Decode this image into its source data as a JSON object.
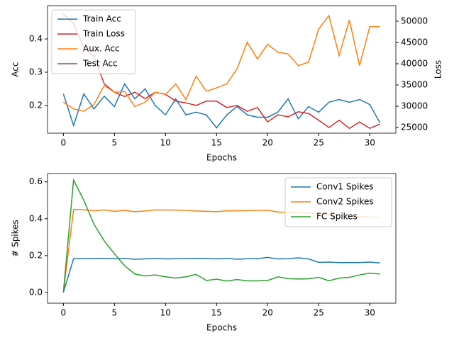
{
  "chart_data": [
    {
      "type": "line",
      "x": [
        0,
        1,
        2,
        3,
        4,
        5,
        6,
        7,
        8,
        9,
        10,
        11,
        12,
        13,
        14,
        15,
        16,
        17,
        18,
        19,
        20,
        21,
        22,
        23,
        24,
        25,
        26,
        27,
        28,
        29,
        30,
        31
      ],
      "xlabel": "Epochs",
      "ylabel": "Acc",
      "y2label": "Loss",
      "xlim": [
        -1.55,
        32.55
      ],
      "xticks": [
        0,
        5,
        10,
        15,
        20,
        25,
        30
      ],
      "ylim": [
        0.117,
        0.5
      ],
      "yticks": [
        0.2,
        0.3,
        0.4
      ],
      "y2lim": [
        23667,
        53667
      ],
      "y2ticks": [
        25000,
        30000,
        35000,
        40000,
        45000,
        50000
      ],
      "legend": "upper left",
      "series": [
        {
          "name": "Train Acc",
          "color": "#1f77b4",
          "values": [
            0.235,
            0.14,
            0.235,
            0.19,
            0.228,
            0.197,
            0.265,
            0.22,
            0.25,
            0.2,
            0.172,
            0.22,
            0.172,
            0.18,
            0.172,
            0.133,
            0.172,
            0.197,
            0.172,
            0.165,
            0.165,
            0.18,
            0.22,
            0.16,
            0.197,
            0.18,
            0.21,
            0.218,
            0.21,
            0.218,
            0.203,
            0.148
          ]
        },
        {
          "name": "Train Loss",
          "color": "#d62728",
          "axis": "y2",
          "values": [
            51667,
            49500,
            43800,
            41700,
            35300,
            33300,
            32300,
            33300,
            31800,
            33300,
            32800,
            31200,
            30800,
            30200,
            31200,
            31200,
            29700,
            30200,
            28800,
            29700,
            26300,
            28000,
            27500,
            28700,
            28300,
            26700,
            25000,
            26700,
            24800,
            26300,
            24800,
            25800
          ]
        },
        {
          "name": "Aux. Acc",
          "color": "#ff7f0e",
          "values": [
            0.21,
            0.19,
            0.183,
            0.203,
            0.26,
            0.24,
            0.242,
            0.197,
            0.21,
            0.24,
            0.233,
            0.265,
            0.218,
            0.288,
            0.243,
            0.253,
            0.265,
            0.31,
            0.39,
            0.34,
            0.384,
            0.36,
            0.355,
            0.32,
            0.33,
            0.43,
            0.47,
            0.35,
            0.457,
            0.32,
            0.437,
            0.437
          ]
        },
        {
          "name": "Test Acc",
          "color": "#8c564b",
          "values": [
            null,
            null,
            null,
            null,
            null,
            null,
            null,
            null,
            null,
            null,
            null,
            null,
            null,
            null,
            null,
            null,
            null,
            null,
            null,
            null,
            null,
            null,
            null,
            null,
            null,
            null,
            null,
            null,
            null,
            null,
            null,
            null
          ]
        }
      ]
    },
    {
      "type": "line",
      "x": [
        0,
        1,
        2,
        3,
        4,
        5,
        6,
        7,
        8,
        9,
        10,
        11,
        12,
        13,
        14,
        15,
        16,
        17,
        18,
        19,
        20,
        21,
        22,
        23,
        24,
        25,
        26,
        27,
        28,
        29,
        30,
        31
      ],
      "xlabel": "Epochs",
      "ylabel": "# Spikes",
      "xlim": [
        -1.55,
        32.55
      ],
      "xticks": [
        0,
        5,
        10,
        15,
        20,
        25,
        30
      ],
      "ylim": [
        -0.058,
        0.645
      ],
      "yticks": [
        0.0,
        0.2,
        0.4,
        0.6
      ],
      "legend": "upper right",
      "series": [
        {
          "name": "Conv1 Spikes",
          "color": "#1f77b4",
          "values": [
            0.0,
            0.183,
            0.183,
            0.185,
            0.185,
            0.183,
            0.185,
            0.18,
            0.182,
            0.185,
            0.182,
            0.183,
            0.183,
            0.185,
            0.185,
            0.182,
            0.185,
            0.18,
            0.183,
            0.183,
            0.19,
            0.182,
            0.183,
            0.188,
            0.182,
            0.163,
            0.165,
            0.162,
            0.162,
            0.162,
            0.165,
            0.16
          ]
        },
        {
          "name": "Conv2 Spikes",
          "color": "#ff7f0e",
          "values": [
            0.0,
            0.45,
            0.448,
            0.443,
            0.448,
            0.44,
            0.445,
            0.438,
            0.442,
            0.448,
            0.447,
            0.447,
            0.445,
            0.442,
            0.44,
            0.438,
            0.443,
            0.443,
            0.444,
            0.445,
            0.446,
            0.436,
            0.434,
            0.433,
            0.43,
            0.425,
            0.42,
            0.42,
            0.415,
            0.41,
            0.41,
            0.405
          ]
        },
        {
          "name": "FC Spikes",
          "color": "#2ca02c",
          "values": [
            0.0,
            0.61,
            0.5,
            0.37,
            0.28,
            0.21,
            0.145,
            0.1,
            0.09,
            0.095,
            0.085,
            0.078,
            0.085,
            0.098,
            0.065,
            0.072,
            0.062,
            0.07,
            0.063,
            0.063,
            0.065,
            0.085,
            0.075,
            0.073,
            0.074,
            0.082,
            0.063,
            0.078,
            0.082,
            0.095,
            0.105,
            0.1
          ]
        }
      ]
    }
  ]
}
